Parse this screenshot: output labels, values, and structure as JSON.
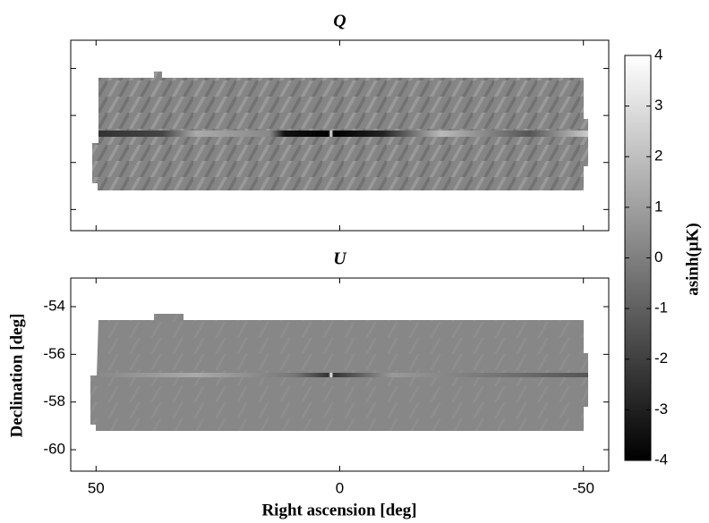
{
  "chart_data": {
    "type": "heatmap",
    "panels": [
      {
        "title": "Q"
      },
      {
        "title": "U"
      }
    ],
    "xlabel": "Right ascension [deg]",
    "ylabel": "Declination [deg]",
    "xlim": [
      55.2,
      -55.2
    ],
    "xticks": [
      50,
      0,
      -50
    ],
    "ylim": [
      -60.9,
      -52.8
    ],
    "yticks": [
      -54,
      -56,
      -58,
      -60
    ],
    "colormap": "gray",
    "colorbar": {
      "label": "asinh(μK)",
      "lim": [
        -4,
        4
      ],
      "ticks": [
        -4,
        -3,
        -2,
        -1,
        0,
        1,
        2,
        3,
        4
      ]
    }
  }
}
